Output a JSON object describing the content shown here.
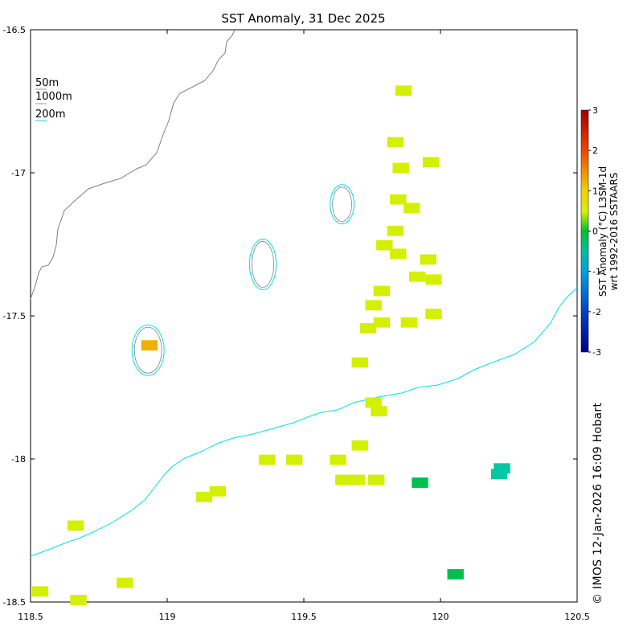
{
  "title": "SST Anomaly, 31 Dec 2025",
  "map": {
    "lon_range": [
      118.5,
      120.5
    ],
    "lat_range": [
      -18.5,
      -16.5
    ],
    "x_ticks": [
      "118.5",
      "119",
      "119.5",
      "120",
      "120.5"
    ],
    "y_ticks": [
      "-16.5",
      "-17",
      "-17.5",
      "-18",
      "-18.5"
    ],
    "legend": {
      "items": [
        "50m",
        "1000m",
        "200m"
      ],
      "placement": "top-left"
    },
    "colors": {
      "contour_50m": "#7f7f7f",
      "contour_1000m": "#7f7f7f",
      "contour_200m": "#00e0f0",
      "coast": "#808080"
    },
    "islands": [
      {
        "name": "",
        "lon": 118.93,
        "lat": -17.62,
        "rx": 0.05,
        "ry": 0.08
      },
      {
        "name": "",
        "lon": 119.35,
        "lat": -17.32,
        "rx": 0.04,
        "ry": 0.08
      },
      {
        "name": "",
        "lon": 119.64,
        "lat": -17.11,
        "rx": 0.035,
        "ry": 0.06
      }
    ],
    "cells": [
      {
        "lon": 119.85,
        "lat": -16.71,
        "color": "#d4f000"
      },
      {
        "lon": 119.82,
        "lat": -16.89,
        "color": "#d4f000"
      },
      {
        "lon": 119.84,
        "lat": -16.98,
        "color": "#d4f000"
      },
      {
        "lon": 119.95,
        "lat": -16.96,
        "color": "#d4f000"
      },
      {
        "lon": 119.83,
        "lat": -17.09,
        "color": "#d4f000"
      },
      {
        "lon": 119.88,
        "lat": -17.12,
        "color": "#d4f000"
      },
      {
        "lon": 119.82,
        "lat": -17.2,
        "color": "#d4f000"
      },
      {
        "lon": 119.78,
        "lat": -17.25,
        "color": "#d4f000"
      },
      {
        "lon": 119.83,
        "lat": -17.28,
        "color": "#d4f000"
      },
      {
        "lon": 119.94,
        "lat": -17.3,
        "color": "#d4f000"
      },
      {
        "lon": 119.9,
        "lat": -17.36,
        "color": "#d4f000"
      },
      {
        "lon": 119.96,
        "lat": -17.37,
        "color": "#d4f000"
      },
      {
        "lon": 119.77,
        "lat": -17.41,
        "color": "#d4f000"
      },
      {
        "lon": 119.74,
        "lat": -17.46,
        "color": "#d4f000"
      },
      {
        "lon": 119.72,
        "lat": -17.54,
        "color": "#d4f000"
      },
      {
        "lon": 119.77,
        "lat": -17.52,
        "color": "#d4f000"
      },
      {
        "lon": 119.87,
        "lat": -17.52,
        "color": "#d4f000"
      },
      {
        "lon": 119.69,
        "lat": -17.66,
        "color": "#d4f000"
      },
      {
        "lon": 119.74,
        "lat": -17.8,
        "color": "#d4f000"
      },
      {
        "lon": 119.76,
        "lat": -17.83,
        "color": "#d4f000"
      },
      {
        "lon": 119.69,
        "lat": -17.95,
        "color": "#d4f000"
      },
      {
        "lon": 119.61,
        "lat": -18.0,
        "color": "#d4f000"
      },
      {
        "lon": 119.35,
        "lat": -18.0,
        "color": "#d4f000"
      },
      {
        "lon": 119.45,
        "lat": -18.0,
        "color": "#d4f000"
      },
      {
        "lon": 119.68,
        "lat": -18.07,
        "color": "#d4f000"
      },
      {
        "lon": 119.75,
        "lat": -18.07,
        "color": "#d4f000"
      },
      {
        "lon": 119.63,
        "lat": -18.07,
        "color": "#d4f000"
      },
      {
        "lon": 119.12,
        "lat": -18.13,
        "color": "#d4f000"
      },
      {
        "lon": 119.17,
        "lat": -18.11,
        "color": "#d4f000"
      },
      {
        "lon": 118.65,
        "lat": -18.23,
        "color": "#d4f000"
      },
      {
        "lon": 118.83,
        "lat": -18.43,
        "color": "#d4f000"
      },
      {
        "lon": 118.52,
        "lat": -18.46,
        "color": "#d4f000"
      },
      {
        "lon": 118.66,
        "lat": -18.49,
        "color": "#d4f000"
      },
      {
        "lon": 119.96,
        "lat": -17.49,
        "color": "#d4f000"
      },
      {
        "lon": 118.92,
        "lat": -17.6,
        "color": "#f0b000"
      },
      {
        "lon": 119.91,
        "lat": -18.08,
        "color": "#00c050"
      },
      {
        "lon": 120.04,
        "lat": -18.4,
        "color": "#00c050"
      },
      {
        "lon": 120.21,
        "lat": -18.03,
        "color": "#00c8a0"
      },
      {
        "lon": 120.2,
        "lat": -18.05,
        "color": "#00c8a0"
      }
    ]
  },
  "colorbar": {
    "ticks": [
      "3",
      "2",
      "1",
      "0",
      "-1",
      "-2",
      "-3"
    ],
    "range": [
      -3,
      3
    ],
    "label_line1": "SST Anomaly (°C) L3SM-1d",
    "label_line2": "wrt 1992-2016 SSTAARS"
  },
  "credit": "© IMOS 12-Jan-2026 16:09 Hobart"
}
